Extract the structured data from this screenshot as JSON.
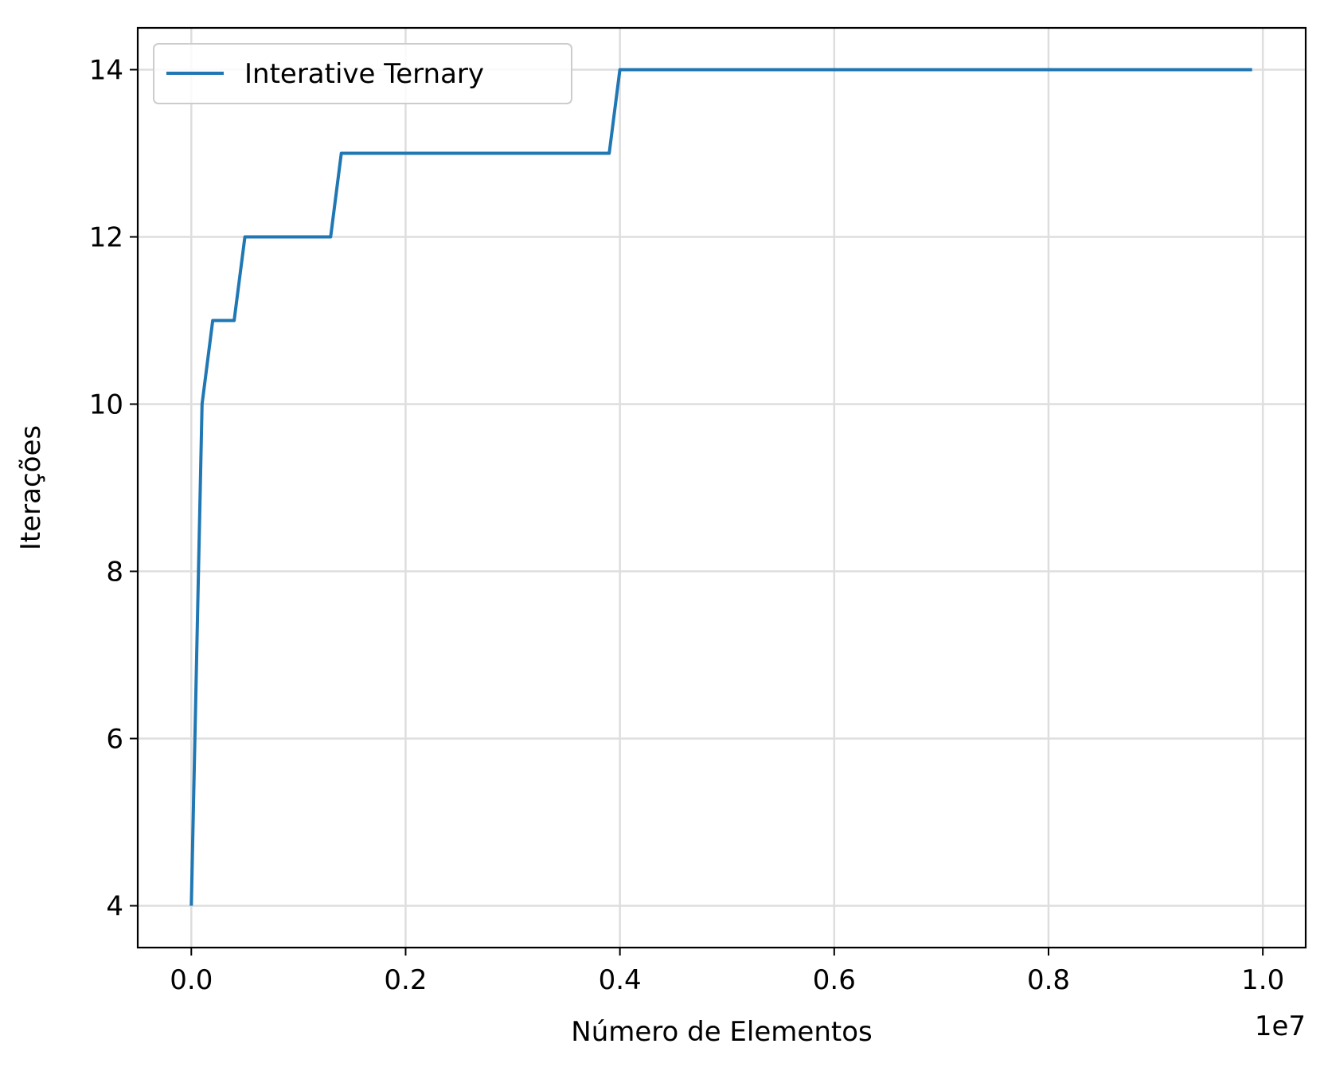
{
  "chart_data": {
    "type": "line",
    "title": "",
    "xlabel": "Número de Elementos",
    "ylabel": "Iterações",
    "x_offset_label": "1e7",
    "xlim": [
      -0.05,
      1.04
    ],
    "ylim": [
      3.5,
      14.5
    ],
    "xticks": [
      0.0,
      0.2,
      0.4,
      0.6,
      0.8,
      1.0
    ],
    "xtick_labels": [
      "0.0",
      "0.2",
      "0.4",
      "0.6",
      "0.8",
      "1.0"
    ],
    "yticks": [
      4,
      6,
      8,
      10,
      12,
      14
    ],
    "ytick_labels": [
      "4",
      "6",
      "8",
      "10",
      "12",
      "14"
    ],
    "grid": true,
    "legend_position": "top-left",
    "series": [
      {
        "name": "Interative Ternary",
        "color": "#1f77b4",
        "x": [
          0.0,
          0.01,
          0.02,
          0.04,
          0.05,
          0.13,
          0.14,
          0.39,
          0.4,
          0.99
        ],
        "y": [
          4,
          10,
          11,
          11,
          12,
          12,
          13,
          13,
          14,
          14
        ]
      }
    ]
  }
}
